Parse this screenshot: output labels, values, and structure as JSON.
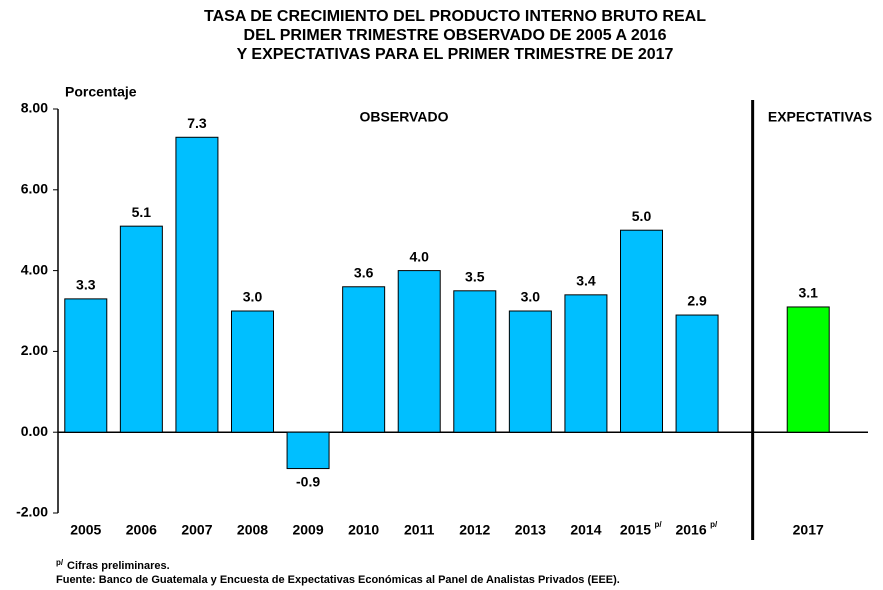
{
  "chart_data": {
    "type": "bar",
    "title": [
      "TASA DE CRECIMIENTO DEL PRODUCTO INTERNO BRUTO REAL",
      "DEL PRIMER TRIMESTRE OBSERVADO DE  2005 A 2016",
      "Y EXPECTATIVAS PARA EL PRIMER TRIMESTRE DE 2017"
    ],
    "y_label": "Porcentaje",
    "annotations": [
      "OBSERVADO",
      "EXPECTATIVAS"
    ],
    "categories": [
      "2005",
      "2006",
      "2007",
      "2008",
      "2009",
      "2010",
      "2011",
      "2012",
      "2013",
      "2014",
      "2015",
      "2016",
      null,
      "2017"
    ],
    "category_superscripts": [
      null,
      null,
      null,
      null,
      null,
      null,
      null,
      null,
      null,
      null,
      "p/",
      "p/",
      null,
      null
    ],
    "values": [
      3.3,
      5.1,
      7.3,
      3.0,
      -0.9,
      3.6,
      4.0,
      3.5,
      3.0,
      3.4,
      5.0,
      2.9,
      null,
      3.1
    ],
    "value_labels": [
      "3.3",
      "5.1",
      "7.3",
      "3.0",
      "-0.9",
      "3.6",
      "4.0",
      "3.5",
      "3.0",
      "3.4",
      "5.0",
      "2.9",
      null,
      "3.1"
    ],
    "colors": [
      "#00bfff",
      "#00bfff",
      "#00bfff",
      "#00bfff",
      "#00bfff",
      "#00bfff",
      "#00bfff",
      "#00bfff",
      "#00bfff",
      "#00bfff",
      "#00bfff",
      "#00bfff",
      null,
      "#00ff00"
    ],
    "ylim": [
      -2,
      8
    ],
    "yticks": [
      {
        "value": -2,
        "label": "-2.00"
      },
      {
        "value": 0,
        "label": "0.00"
      },
      {
        "value": 2,
        "label": "2.00"
      },
      {
        "value": 4,
        "label": "4.00"
      },
      {
        "value": 6,
        "label": "6.00"
      },
      {
        "value": 8,
        "label": "8.00"
      }
    ],
    "footnote": {
      "mark": "p/",
      "text": "Cifras preliminares."
    },
    "source": "Fuente:  Banco de Guatemala y Encuesta de Expectativas Económicas al Panel de Analistas Privados (EEE)."
  }
}
